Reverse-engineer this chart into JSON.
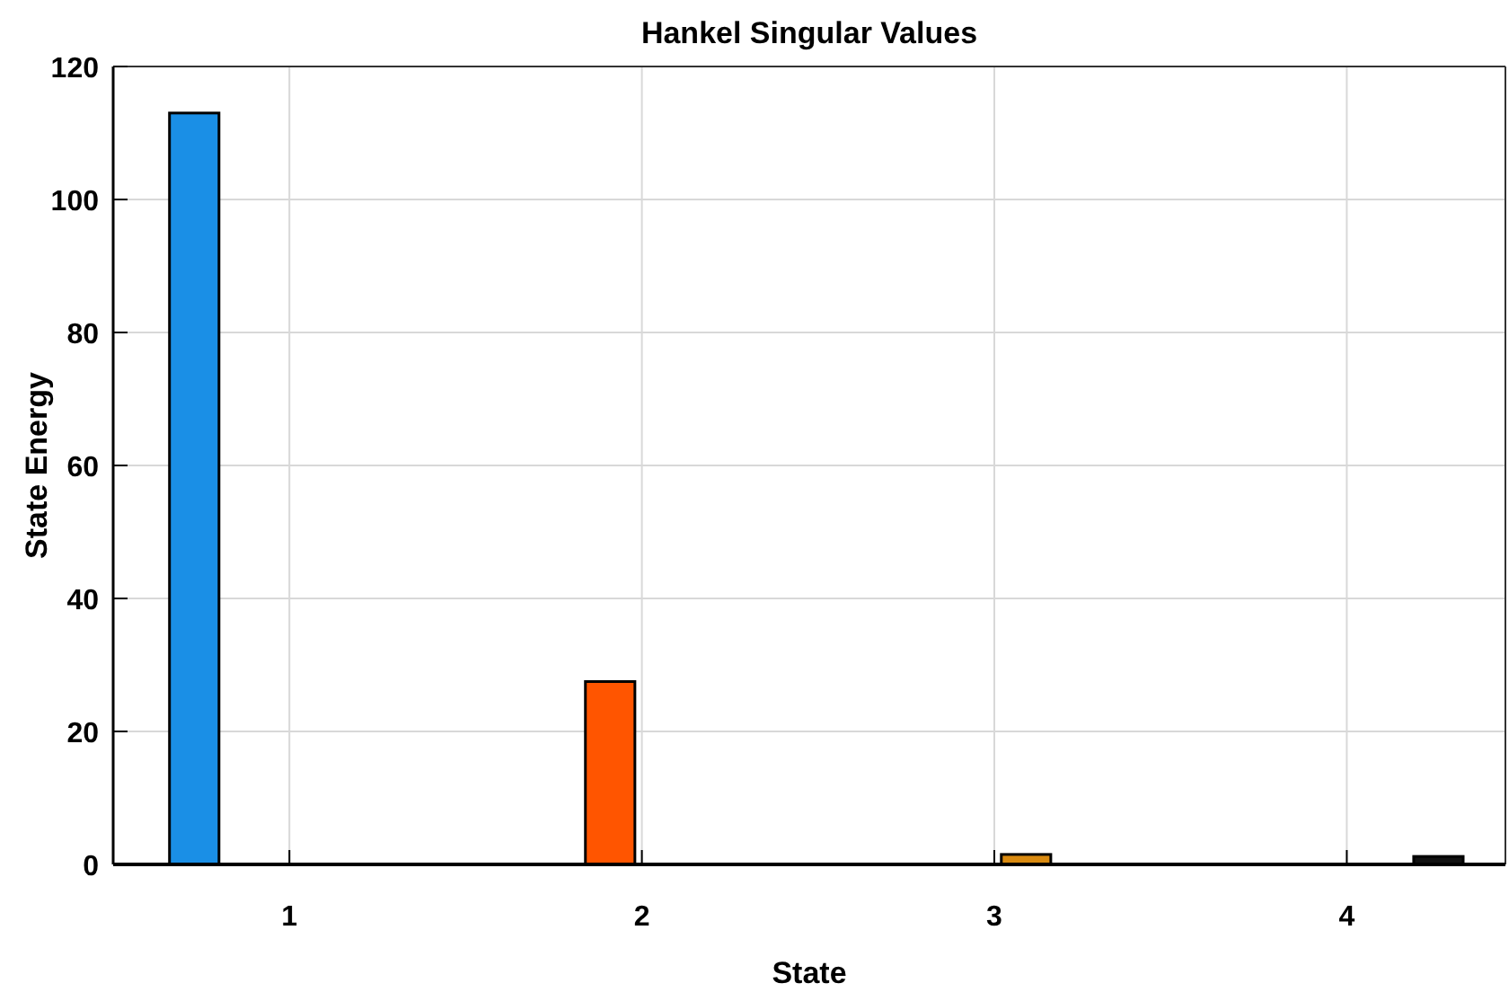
{
  "chart_data": {
    "type": "bar",
    "title": "Hankel Singular Values",
    "xlabel": "State",
    "ylabel": "State Energy",
    "x": [
      0.73,
      1.91,
      3.09,
      4.26
    ],
    "values": [
      113,
      27.5,
      1.5,
      1.2
    ],
    "colors": [
      "#1a8fe6",
      "#ff5500",
      "#d98a10",
      "#111111"
    ],
    "xlim": [
      0.5,
      4.45
    ],
    "xticks": [
      1,
      2,
      3,
      4
    ],
    "ylim": [
      0,
      120
    ],
    "yticks": [
      0,
      20,
      40,
      60,
      80,
      100,
      120
    ],
    "grid": true
  }
}
